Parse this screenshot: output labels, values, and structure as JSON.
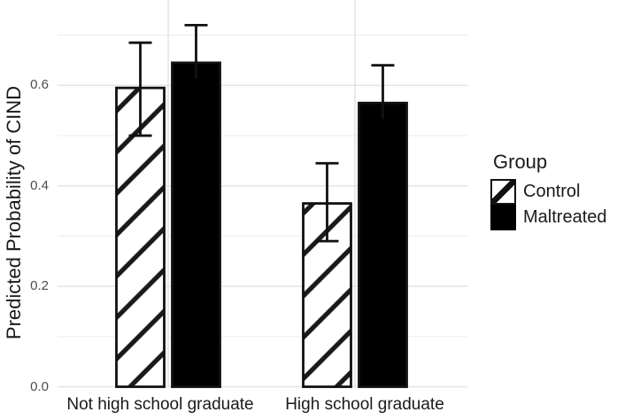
{
  "chart_data": {
    "type": "bar",
    "title": "",
    "xlabel": "",
    "ylabel": "Predicted Probability of CIND",
    "categories": [
      "Not high school graduate",
      "High school graduate"
    ],
    "series": [
      {
        "name": "Control",
        "style": "hatched",
        "values": [
          0.595,
          0.365
        ],
        "error_low": [
          0.5,
          0.29
        ],
        "error_high": [
          0.685,
          0.445
        ]
      },
      {
        "name": "Maltreated",
        "style": "solid",
        "values": [
          0.645,
          0.565
        ],
        "error_high": [
          0.72,
          0.64
        ]
      }
    ],
    "ylim": [
      0,
      0.77
    ],
    "yticks": [
      0.0,
      0.2,
      0.4,
      0.6
    ],
    "ytick_labels": [
      "0.0",
      "0.2",
      "0.4",
      "0.6"
    ],
    "yticks_minor": [
      0.1,
      0.3,
      0.5,
      0.7
    ],
    "grid": "horizontal-every-0.1 plus vertical-at-category-centers",
    "legend": {
      "title": "Group",
      "position": "right"
    }
  },
  "colors": {
    "background": "#ffffff",
    "bar_fill": "#000000",
    "bar_stroke": "#111111",
    "hatch_stroke": "#1a1a1a",
    "grid_major": "#e4e4e4",
    "grid_minor": "#ededed",
    "ytick_text": "#4d4d4d",
    "text": "#1a1a1a"
  }
}
